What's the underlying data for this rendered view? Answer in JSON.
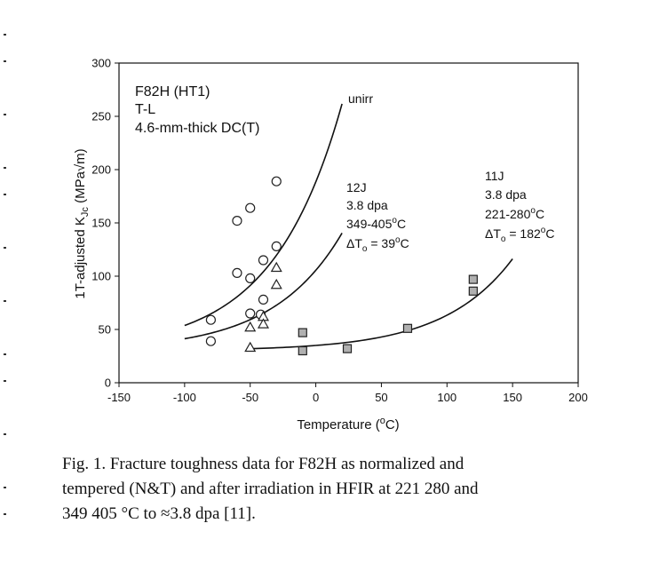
{
  "chart_data": {
    "type": "scatter",
    "xlabel": "Temperature",
    "xlabel_unit": "(oC)",
    "ylabel": "1T-adjusted K",
    "ylabel_sub": "Jc",
    "ylabel_unit": "(MPa√m)",
    "xlim": [
      -150,
      200
    ],
    "ylim": [
      0,
      300
    ],
    "xticks": [
      -150,
      -100,
      -50,
      0,
      50,
      100,
      150,
      200
    ],
    "yticks": [
      0,
      50,
      100,
      150,
      200,
      250,
      300
    ],
    "grid": false,
    "header": [
      "F82H (HT1)",
      "T-L",
      "4.6-mm-thick DC(T)"
    ],
    "series": [
      {
        "marker": "circle",
        "points": [
          [
            -80,
            59
          ],
          [
            -80,
            39
          ],
          [
            -60,
            152
          ],
          [
            -60,
            103
          ],
          [
            -50,
            164
          ],
          [
            -50,
            98
          ],
          [
            -50,
            65
          ],
          [
            -40,
            115
          ],
          [
            -40,
            78
          ],
          [
            -42,
            64
          ],
          [
            -30,
            189
          ],
          [
            -30,
            128
          ]
        ]
      },
      {
        "marker": "triangle",
        "points": [
          [
            -50,
            52
          ],
          [
            -50,
            33
          ],
          [
            -40,
            62
          ],
          [
            -40,
            55
          ],
          [
            -30,
            108
          ],
          [
            -30,
            92
          ]
        ]
      },
      {
        "marker": "square",
        "points": [
          [
            -10,
            47
          ],
          [
            -10,
            30
          ],
          [
            24,
            32
          ],
          [
            70,
            51
          ],
          [
            120,
            97
          ],
          [
            120,
            86
          ]
        ]
      }
    ],
    "curves": [
      {
        "label": "unirr",
        "T0": -43,
        "x_range": [
          -100,
          20
        ]
      },
      {
        "label": "12J",
        "T0": -4,
        "x_range": [
          -100,
          20
        ]
      },
      {
        "label": "11J",
        "T0": 139,
        "x_range": [
          -50,
          150
        ]
      }
    ],
    "annotations": [
      {
        "id": "unirr",
        "lines": [
          "unirr"
        ]
      },
      {
        "id": "12J",
        "lines": [
          "12J",
          "3.8 dpa",
          "349-405oC",
          "ΔTo = 39oC"
        ]
      },
      {
        "id": "11J",
        "lines": [
          "11J",
          "3.8 dpa",
          "221-280oC",
          "ΔTo = 182oC"
        ]
      }
    ],
    "colors": {
      "axis": "#111111",
      "square_fill": "#b0b0b0",
      "marker_stroke": "#222222"
    }
  },
  "caption": {
    "lines": [
      "Fig. 1. Fracture toughness data for F82H as normalized and",
      "tempered (N&T) and after irradiation in HFIR at 221  280 and",
      "349  405 °C to ≈3.8 dpa [11]."
    ]
  }
}
